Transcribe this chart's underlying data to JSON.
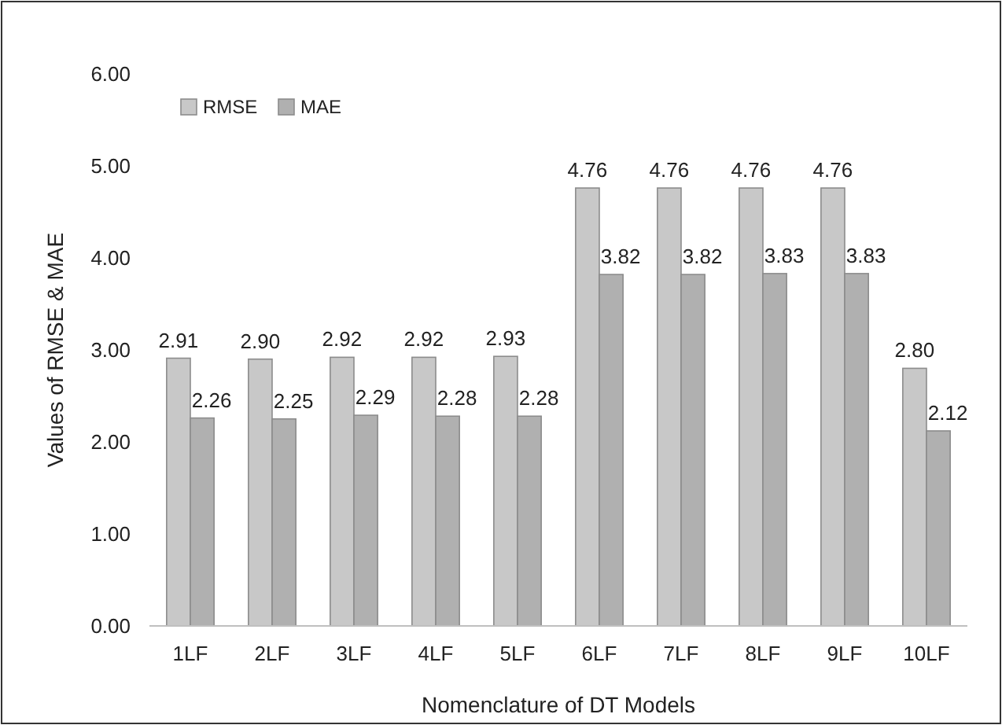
{
  "chart_data": {
    "type": "bar",
    "xlabel": "Nomenclature of DT Models",
    "ylabel": "Values of RMSE & MAE",
    "categories": [
      "1LF",
      "2LF",
      "3LF",
      "4LF",
      "5LF",
      "6LF",
      "7LF",
      "8LF",
      "9LF",
      "10LF"
    ],
    "series": [
      {
        "name": "RMSE",
        "color": "#c8c8c8",
        "values": [
          2.91,
          2.9,
          2.92,
          2.92,
          2.93,
          4.76,
          4.76,
          4.76,
          4.76,
          2.8
        ],
        "value_labels": [
          "2.91",
          "2.90",
          "2.92",
          "2.92",
          "2.93",
          "4.76",
          "4.76",
          "4.76",
          "4.76",
          "2.80"
        ]
      },
      {
        "name": "MAE",
        "color": "#b0b0b0",
        "values": [
          2.26,
          2.25,
          2.29,
          2.28,
          2.28,
          3.82,
          3.82,
          3.83,
          3.83,
          2.12
        ],
        "value_labels": [
          "2.26",
          "2.25",
          "2.29",
          "2.28",
          "2.28",
          "3.82",
          "3.82",
          "3.83",
          "3.83",
          "2.12"
        ]
      }
    ],
    "ylim": [
      0,
      6
    ],
    "yticks": [
      {
        "value": 0,
        "label": "0.00"
      },
      {
        "value": 1,
        "label": "1.00"
      },
      {
        "value": 2,
        "label": "2.00"
      },
      {
        "value": 3,
        "label": "3.00"
      },
      {
        "value": 4,
        "label": "4.00"
      },
      {
        "value": 5,
        "label": "5.00"
      },
      {
        "value": 6,
        "label": "6.00"
      }
    ],
    "legend": "top left"
  }
}
